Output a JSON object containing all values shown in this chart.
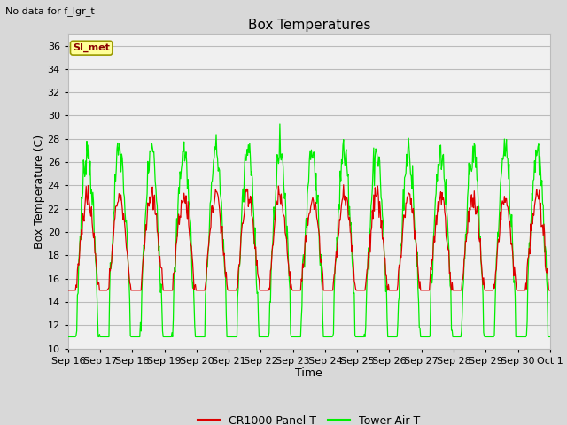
{
  "title": "Box Temperatures",
  "xlabel": "Time",
  "ylabel": "Box Temperature (C)",
  "no_data_text": "No data for f_lgr_t",
  "SI_met_label": "SI_met",
  "ylim": [
    10,
    37
  ],
  "yticks": [
    10,
    12,
    14,
    16,
    18,
    20,
    22,
    24,
    26,
    28,
    30,
    32,
    34,
    36
  ],
  "xtick_labels": [
    "Sep 16",
    "Sep 17",
    "Sep 18",
    "Sep 19",
    "Sep 20",
    "Sep 21",
    "Sep 22",
    "Sep 23",
    "Sep 24",
    "Sep 25",
    "Sep 26",
    "Sep 27",
    "Sep 28",
    "Sep 29",
    "Sep 30",
    "Oct 1"
  ],
  "bg_color": "#d8d8d8",
  "plot_bg_color": "#f0f0f0",
  "grid_color": "#bbbbbb",
  "red_color": "#dd0000",
  "green_color": "#00ee00",
  "legend_labels": [
    "CR1000 Panel T",
    "Tower Air T"
  ],
  "title_fontsize": 11,
  "label_fontsize": 9,
  "tick_fontsize": 8,
  "no_data_fontsize": 8,
  "SI_met_fontsize": 8
}
